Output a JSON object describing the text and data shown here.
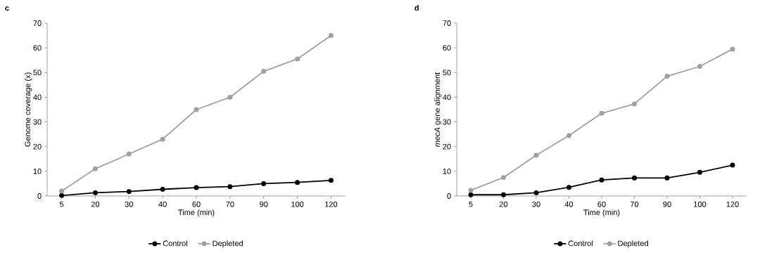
{
  "chart_data": [
    {
      "type": "line",
      "title": "c",
      "xlabel": "Time (min)",
      "ylabel": "Genome coverage (x)",
      "categories": [
        "5",
        "20",
        "30",
        "40",
        "60",
        "70",
        "90",
        "100",
        "120"
      ],
      "series": [
        {
          "name": "Control",
          "color": "#000000",
          "values": [
            0.2,
            1.3,
            1.8,
            2.7,
            3.4,
            3.8,
            5,
            5.5,
            6.3
          ]
        },
        {
          "name": "Depleted",
          "color": "#a0a0a0",
          "values": [
            2,
            11,
            17,
            23,
            35,
            40,
            50.5,
            55.5,
            65
          ]
        }
      ],
      "ylim": [
        0,
        70
      ],
      "yticks": [
        0,
        10,
        20,
        30,
        40,
        50,
        60,
        70
      ],
      "legend": "bottom",
      "marker": "circle",
      "grid": false
    },
    {
      "type": "line",
      "title": "d",
      "xlabel": "Time (min)",
      "ylabel": "*mecA* gene alignment",
      "categories": [
        "5",
        "20",
        "30",
        "40",
        "60",
        "70",
        "90",
        "100",
        "120"
      ],
      "series": [
        {
          "name": "Control",
          "color": "#000000",
          "values": [
            0.5,
            0.5,
            1.3,
            3.5,
            6.5,
            7.3,
            7.3,
            9.6,
            12.5
          ]
        },
        {
          "name": "Depleted",
          "color": "#a0a0a0",
          "values": [
            2.3,
            7.5,
            16.5,
            24.5,
            33.5,
            37.3,
            48.5,
            52.5,
            59.5
          ]
        }
      ],
      "ylim": [
        0,
        70
      ],
      "yticks": [
        0,
        10,
        20,
        30,
        40,
        50,
        60,
        70
      ],
      "legend": "bottom",
      "marker": "circle",
      "grid": false
    }
  ]
}
